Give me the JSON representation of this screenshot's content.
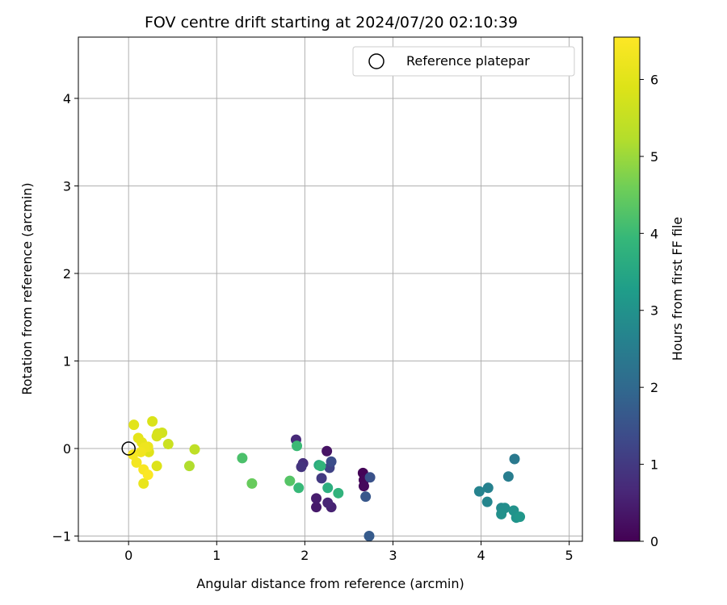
{
  "chart_data": {
    "type": "scatter",
    "title": "FOV centre drift starting at 2024/07/20 02:10:39",
    "xlabel": "Angular distance from reference (arcmin)",
    "ylabel": "Rotation from reference (arcmin)",
    "xlim": [
      -0.57,
      5.15
    ],
    "ylim": [
      -1.06,
      4.7
    ],
    "xticks": [
      0,
      1,
      2,
      3,
      4,
      5
    ],
    "yticks": [
      -1,
      0,
      1,
      2,
      3,
      4
    ],
    "xtick_labels": [
      "0",
      "1",
      "2",
      "3",
      "4",
      "5"
    ],
    "ytick_labels": [
      "−1",
      "0",
      "1",
      "2",
      "3",
      "4"
    ],
    "grid": true,
    "legend": {
      "placement": "top-right",
      "entries": [
        "Reference platepar"
      ]
    },
    "reference_point": {
      "x": 0,
      "y": 0,
      "label": "Reference platepar",
      "marker": "open-circle"
    },
    "colorbar": {
      "label": "Hours from first FF file",
      "colormap": "viridis",
      "range": [
        0,
        6.55
      ],
      "ticks": [
        0,
        1,
        2,
        3,
        4,
        5,
        6
      ],
      "tick_labels": [
        "0",
        "1",
        "2",
        "3",
        "4",
        "5",
        "6"
      ]
    },
    "series": [
      {
        "points": [
          {
            "x": 2.66,
            "y": -0.28,
            "c": 0.05
          },
          {
            "x": 2.67,
            "y": -0.36,
            "c": 0.1
          },
          {
            "x": 2.67,
            "y": -0.43,
            "c": 0.15
          },
          {
            "x": 2.25,
            "y": -0.03,
            "c": 0.3
          },
          {
            "x": 2.13,
            "y": -0.67,
            "c": 0.4
          },
          {
            "x": 2.13,
            "y": -0.57,
            "c": 0.45
          },
          {
            "x": 2.3,
            "y": -0.67,
            "c": 0.55
          },
          {
            "x": 2.26,
            "y": -0.62,
            "c": 0.6
          },
          {
            "x": 1.9,
            "y": 0.1,
            "c": 0.7
          },
          {
            "x": 1.98,
            "y": -0.17,
            "c": 0.8
          },
          {
            "x": 1.96,
            "y": -0.21,
            "c": 0.9
          },
          {
            "x": 2.19,
            "y": -0.34,
            "c": 1.0
          },
          {
            "x": 2.28,
            "y": -0.22,
            "c": 1.2
          },
          {
            "x": 2.3,
            "y": -0.15,
            "c": 1.4
          },
          {
            "x": 2.74,
            "y": -0.33,
            "c": 1.5
          },
          {
            "x": 2.69,
            "y": -0.55,
            "c": 1.6
          },
          {
            "x": 2.73,
            "y": -1.0,
            "c": 1.7
          },
          {
            "x": 4.38,
            "y": -0.12,
            "c": 2.4
          },
          {
            "x": 4.31,
            "y": -0.32,
            "c": 2.5
          },
          {
            "x": 4.08,
            "y": -0.45,
            "c": 2.6
          },
          {
            "x": 3.98,
            "y": -0.49,
            "c": 2.65
          },
          {
            "x": 4.07,
            "y": -0.61,
            "c": 2.7
          },
          {
            "x": 4.23,
            "y": -0.68,
            "c": 2.8
          },
          {
            "x": 4.27,
            "y": -0.68,
            "c": 2.9
          },
          {
            "x": 4.23,
            "y": -0.75,
            "c": 2.95
          },
          {
            "x": 4.37,
            "y": -0.71,
            "c": 3.0
          },
          {
            "x": 4.4,
            "y": -0.79,
            "c": 3.05
          },
          {
            "x": 4.44,
            "y": -0.78,
            "c": 3.1
          },
          {
            "x": 2.16,
            "y": -0.19,
            "c": 3.6
          },
          {
            "x": 2.26,
            "y": -0.45,
            "c": 3.7
          },
          {
            "x": 2.38,
            "y": -0.51,
            "c": 3.8
          },
          {
            "x": 2.18,
            "y": -0.2,
            "c": 3.85
          },
          {
            "x": 1.93,
            "y": -0.45,
            "c": 3.95
          },
          {
            "x": 1.29,
            "y": -0.11,
            "c": 4.2
          },
          {
            "x": 1.83,
            "y": -0.37,
            "c": 4.3
          },
          {
            "x": 1.91,
            "y": 0.03,
            "c": 4.0
          },
          {
            "x": 1.4,
            "y": -0.4,
            "c": 4.5
          },
          {
            "x": 0.69,
            "y": -0.2,
            "c": 5.2
          },
          {
            "x": 0.75,
            "y": -0.01,
            "c": 5.4
          },
          {
            "x": 0.45,
            "y": 0.05,
            "c": 5.6
          },
          {
            "x": 0.38,
            "y": 0.18,
            "c": 5.7
          },
          {
            "x": 0.33,
            "y": 0.17,
            "c": 5.75
          },
          {
            "x": 0.32,
            "y": 0.14,
            "c": 5.8
          },
          {
            "x": 0.27,
            "y": 0.31,
            "c": 5.85
          },
          {
            "x": 0.32,
            "y": -0.2,
            "c": 5.9
          },
          {
            "x": 0.23,
            "y": -0.04,
            "c": 5.95
          },
          {
            "x": 0.06,
            "y": 0.27,
            "c": 6.0
          },
          {
            "x": 0.11,
            "y": 0.12,
            "c": 6.05
          },
          {
            "x": 0.15,
            "y": 0.07,
            "c": 6.1
          },
          {
            "x": 0.17,
            "y": -0.4,
            "c": 6.15
          },
          {
            "x": 0.22,
            "y": 0.02,
            "c": 6.2
          },
          {
            "x": 0.18,
            "y": 0.01,
            "c": 6.25
          },
          {
            "x": 0.14,
            "y": -0.04,
            "c": 6.3
          },
          {
            "x": 0.09,
            "y": -0.16,
            "c": 6.35
          },
          {
            "x": 0.05,
            "y": -0.07,
            "c": 6.4
          },
          {
            "x": 0.17,
            "y": -0.24,
            "c": 6.45
          },
          {
            "x": 0.22,
            "y": -0.3,
            "c": 6.5
          }
        ]
      }
    ]
  }
}
